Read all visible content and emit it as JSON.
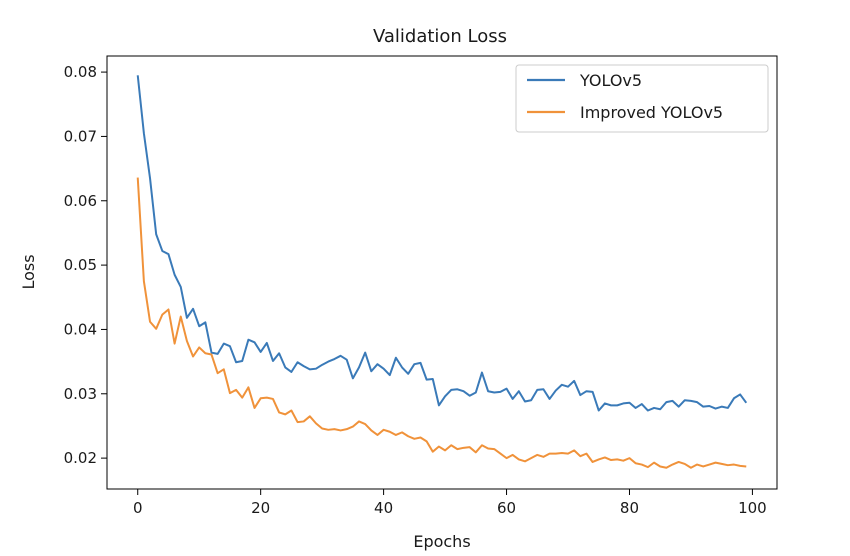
{
  "chart_data": {
    "type": "line",
    "title": "Validation Loss",
    "xlabel": "Epochs",
    "ylabel": "Loss",
    "xlim": [
      -5,
      104
    ],
    "ylim": [
      0.0152,
      0.0825
    ],
    "xticks": [
      0,
      20,
      40,
      60,
      80,
      100
    ],
    "xtick_labels": [
      "0",
      "20",
      "40",
      "60",
      "80",
      "100"
    ],
    "yticks": [
      0.02,
      0.03,
      0.04,
      0.05,
      0.06,
      0.07,
      0.08
    ],
    "ytick_labels": [
      "0.02",
      "0.03",
      "0.04",
      "0.05",
      "0.06",
      "0.07",
      "0.08"
    ],
    "grid": false,
    "legend_position": "top-right",
    "series": [
      {
        "name": "YOLOv5",
        "color": "#3a7ab8",
        "x": [
          0,
          1,
          2,
          3,
          4,
          5,
          6,
          7,
          8,
          9,
          10,
          11,
          12,
          13,
          14,
          15,
          16,
          17,
          18,
          19,
          20,
          21,
          22,
          23,
          24,
          25,
          26,
          27,
          28,
          29,
          30,
          31,
          32,
          33,
          34,
          35,
          36,
          37,
          38,
          39,
          40,
          41,
          42,
          43,
          44,
          45,
          46,
          47,
          48,
          49,
          50,
          51,
          52,
          53,
          54,
          55,
          56,
          57,
          58,
          59,
          60,
          61,
          62,
          63,
          64,
          65,
          66,
          67,
          68,
          69,
          70,
          71,
          72,
          73,
          74,
          75,
          76,
          77,
          78,
          79,
          80,
          81,
          82,
          83,
          84,
          85,
          86,
          87,
          88,
          89,
          90,
          91,
          92,
          93,
          94,
          95,
          96,
          97,
          98,
          99
        ],
        "y": [
          0.0795,
          0.0705,
          0.0635,
          0.0548,
          0.0522,
          0.0517,
          0.0485,
          0.0466,
          0.0418,
          0.0432,
          0.0405,
          0.0411,
          0.0364,
          0.0362,
          0.0378,
          0.0374,
          0.0349,
          0.0351,
          0.0384,
          0.038,
          0.0365,
          0.0379,
          0.0351,
          0.0363,
          0.0341,
          0.0334,
          0.0349,
          0.0343,
          0.0338,
          0.0339,
          0.0345,
          0.035,
          0.0354,
          0.0359,
          0.0353,
          0.0324,
          0.0341,
          0.0364,
          0.0335,
          0.0346,
          0.0339,
          0.0329,
          0.0356,
          0.0341,
          0.0331,
          0.0346,
          0.0348,
          0.0322,
          0.0323,
          0.0282,
          0.0296,
          0.0306,
          0.0307,
          0.0304,
          0.0297,
          0.0302,
          0.0333,
          0.0304,
          0.0302,
          0.0303,
          0.0308,
          0.0292,
          0.0304,
          0.0288,
          0.029,
          0.0306,
          0.0307,
          0.0292,
          0.0305,
          0.0314,
          0.0311,
          0.032,
          0.0298,
          0.0304,
          0.0303,
          0.0274,
          0.0285,
          0.0282,
          0.0282,
          0.0285,
          0.0286,
          0.0278,
          0.0284,
          0.0274,
          0.0278,
          0.0276,
          0.0287,
          0.0289,
          0.028,
          0.029,
          0.0289,
          0.0287,
          0.028,
          0.0281,
          0.0277,
          0.028,
          0.0278,
          0.0293,
          0.0299,
          0.0286
        ]
      },
      {
        "name": "Improved YOLOv5",
        "color": "#f0923a",
        "x": [
          0,
          1,
          2,
          3,
          4,
          5,
          6,
          7,
          8,
          9,
          10,
          11,
          12,
          13,
          14,
          15,
          16,
          17,
          18,
          19,
          20,
          21,
          22,
          23,
          24,
          25,
          26,
          27,
          28,
          29,
          30,
          31,
          32,
          33,
          34,
          35,
          36,
          37,
          38,
          39,
          40,
          41,
          42,
          43,
          44,
          45,
          46,
          47,
          48,
          49,
          50,
          51,
          52,
          53,
          54,
          55,
          56,
          57,
          58,
          59,
          60,
          61,
          62,
          63,
          64,
          65,
          66,
          67,
          68,
          69,
          70,
          71,
          72,
          73,
          74,
          75,
          76,
          77,
          78,
          79,
          80,
          81,
          82,
          83,
          84,
          85,
          86,
          87,
          88,
          89,
          90,
          91,
          92,
          93,
          94,
          95,
          96,
          97,
          98,
          99
        ],
        "y": [
          0.0636,
          0.0475,
          0.0412,
          0.0401,
          0.0423,
          0.0431,
          0.0378,
          0.042,
          0.0382,
          0.0358,
          0.0372,
          0.0363,
          0.0361,
          0.0332,
          0.0338,
          0.0301,
          0.0306,
          0.0294,
          0.031,
          0.0278,
          0.0293,
          0.0294,
          0.0292,
          0.0271,
          0.0268,
          0.0274,
          0.0256,
          0.0257,
          0.0265,
          0.0254,
          0.0246,
          0.0244,
          0.0245,
          0.0243,
          0.0245,
          0.0249,
          0.0257,
          0.0253,
          0.0243,
          0.0236,
          0.0244,
          0.0241,
          0.0236,
          0.024,
          0.0234,
          0.023,
          0.0232,
          0.0226,
          0.021,
          0.0218,
          0.0212,
          0.022,
          0.0214,
          0.0216,
          0.0217,
          0.0209,
          0.022,
          0.0215,
          0.0214,
          0.0207,
          0.02,
          0.0205,
          0.0198,
          0.0195,
          0.02,
          0.0205,
          0.0202,
          0.0207,
          0.0207,
          0.0208,
          0.0207,
          0.0212,
          0.0203,
          0.0207,
          0.0194,
          0.0198,
          0.0201,
          0.0197,
          0.0198,
          0.0196,
          0.02,
          0.0192,
          0.019,
          0.0186,
          0.0193,
          0.0187,
          0.0185,
          0.019,
          0.0194,
          0.0191,
          0.0185,
          0.019,
          0.0187,
          0.019,
          0.0193,
          0.0191,
          0.0189,
          0.019,
          0.0188,
          0.0187
        ]
      }
    ]
  }
}
